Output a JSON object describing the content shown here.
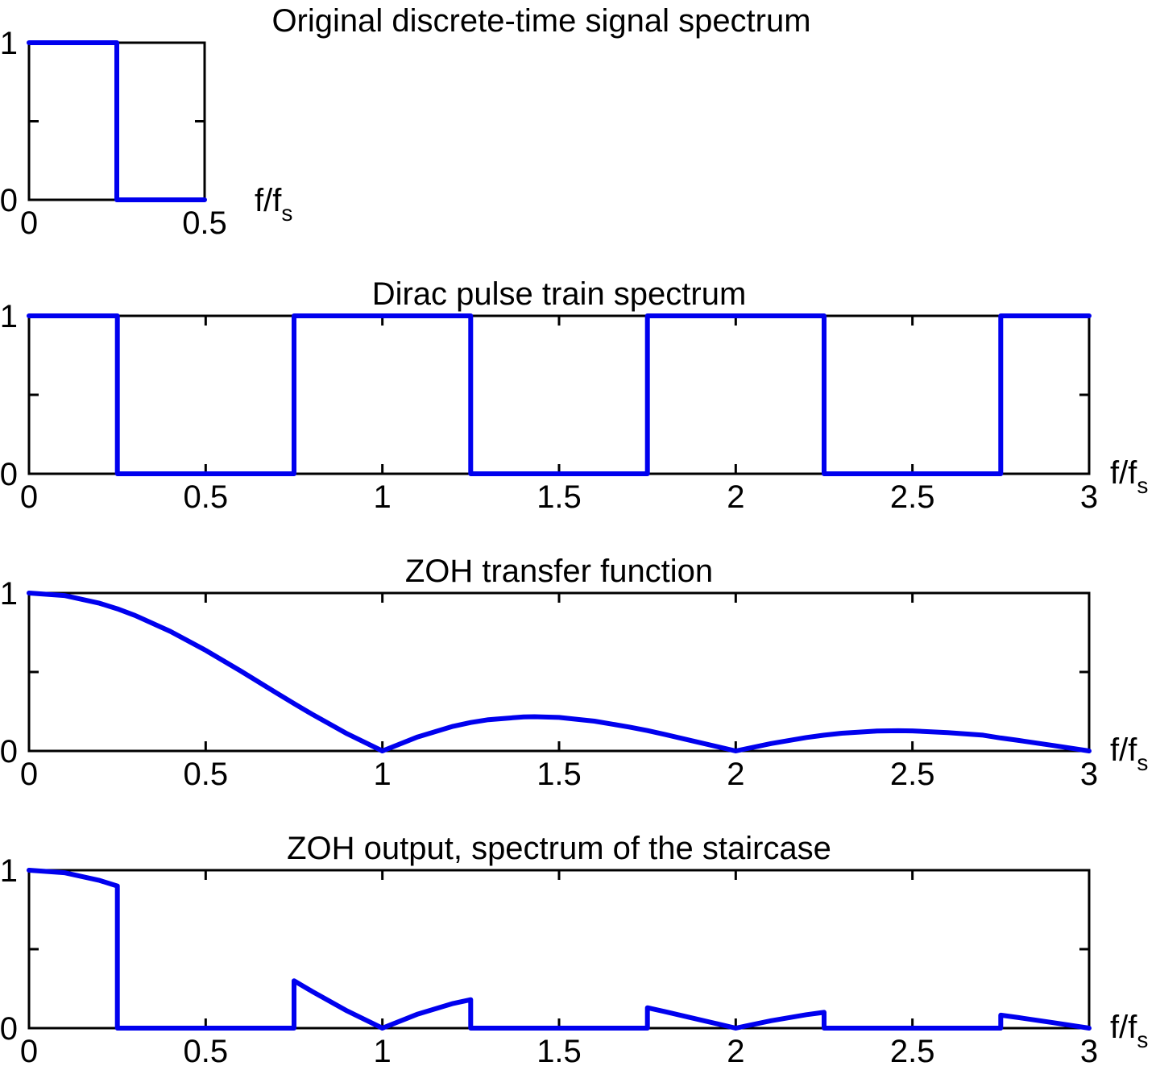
{
  "chart_data": [
    {
      "type": "line",
      "title": "Original discrete-time signal spectrum",
      "xlabel": "f/f",
      "xlabel_sub": "s",
      "xlim": [
        0,
        0.5
      ],
      "ylim": [
        0,
        1
      ],
      "xticks": [
        0,
        0.5
      ],
      "xtick_labels": [
        "0",
        "0.5"
      ],
      "yticks": [
        0,
        0.5,
        1
      ],
      "ytick_labels": [
        "0",
        "",
        "1"
      ],
      "series": [
        {
          "x": [
            0,
            0.25,
            0.25,
            0.5
          ],
          "y": [
            1,
            1,
            0,
            0
          ],
          "color": "#0000ee"
        }
      ]
    },
    {
      "type": "line",
      "title": "Dirac pulse train spectrum",
      "xlabel": "f/f",
      "xlabel_sub": "s",
      "xlim": [
        0,
        3
      ],
      "ylim": [
        0,
        1
      ],
      "xticks": [
        0,
        0.5,
        1,
        1.5,
        2,
        2.5,
        3
      ],
      "xtick_labels": [
        "0",
        "0.5",
        "1",
        "1.5",
        "2",
        "2.5",
        "3"
      ],
      "yticks": [
        0,
        0.5,
        1
      ],
      "ytick_labels": [
        "0",
        "",
        "1"
      ],
      "series": [
        {
          "x": [
            0,
            0.25,
            0.25,
            0.75,
            0.75,
            1.25,
            1.25,
            1.75,
            1.75,
            2.25,
            2.25,
            2.75,
            2.75,
            3
          ],
          "y": [
            1,
            1,
            0,
            0,
            1,
            1,
            0,
            0,
            1,
            1,
            0,
            0,
            1,
            1
          ],
          "color": "#0000ee"
        }
      ]
    },
    {
      "type": "line",
      "title": "ZOH transfer function",
      "xlabel": "f/f",
      "xlabel_sub": "s",
      "xlim": [
        0,
        3
      ],
      "ylim": [
        0,
        1
      ],
      "xticks": [
        0,
        0.5,
        1,
        1.5,
        2,
        2.5,
        3
      ],
      "xtick_labels": [
        "0",
        "0.5",
        "1",
        "1.5",
        "2",
        "2.5",
        "3"
      ],
      "yticks": [
        0,
        0.5,
        1
      ],
      "ytick_labels": [
        "0",
        "",
        "1"
      ],
      "series": [
        {
          "x": [
            0,
            0.1,
            0.2,
            0.25,
            0.3,
            0.4,
            0.5,
            0.6,
            0.7,
            0.75,
            0.8,
            0.9,
            1.0,
            1.1,
            1.2,
            1.25,
            1.3,
            1.4,
            1.43,
            1.5,
            1.6,
            1.7,
            1.75,
            1.8,
            1.9,
            2.0,
            2.1,
            2.2,
            2.25,
            2.3,
            2.4,
            2.46,
            2.5,
            2.6,
            2.7,
            2.75,
            2.8,
            2.9,
            3.0
          ],
          "y": [
            1.0,
            0.984,
            0.935,
            0.9,
            0.858,
            0.757,
            0.637,
            0.505,
            0.368,
            0.3,
            0.234,
            0.109,
            0.0,
            0.089,
            0.156,
            0.18,
            0.198,
            0.216,
            0.217,
            0.212,
            0.189,
            0.151,
            0.129,
            0.104,
            0.052,
            0.0,
            0.047,
            0.085,
            0.1,
            0.112,
            0.126,
            0.128,
            0.127,
            0.116,
            0.1,
            0.082,
            0.067,
            0.034,
            0.0
          ],
          "color": "#0000ee"
        }
      ]
    },
    {
      "type": "line",
      "title": "ZOH output, spectrum of the staircase",
      "xlabel": "f/f",
      "xlabel_sub": "s",
      "xlim": [
        0,
        3
      ],
      "ylim": [
        0,
        1
      ],
      "xticks": [
        0,
        0.5,
        1,
        1.5,
        2,
        2.5,
        3
      ],
      "xtick_labels": [
        "0",
        "0.5",
        "1",
        "1.5",
        "2",
        "2.5",
        "3"
      ],
      "yticks": [
        0,
        0.5,
        1
      ],
      "ytick_labels": [
        "0",
        "",
        "1"
      ],
      "series": [
        {
          "x": [
            0,
            0.1,
            0.2,
            0.25,
            0.25,
            0.75,
            0.75,
            0.8,
            0.9,
            1.0,
            1.1,
            1.2,
            1.25,
            1.25,
            1.75,
            1.75,
            1.8,
            1.9,
            2.0,
            2.1,
            2.2,
            2.25,
            2.25,
            2.75,
            2.75,
            2.8,
            2.9,
            3.0
          ],
          "y": [
            1.0,
            0.984,
            0.935,
            0.9,
            0.0,
            0.0,
            0.3,
            0.234,
            0.109,
            0.0,
            0.089,
            0.156,
            0.18,
            0.0,
            0.0,
            0.129,
            0.104,
            0.052,
            0.0,
            0.047,
            0.085,
            0.1,
            0.0,
            0.0,
            0.082,
            0.067,
            0.034,
            0.0
          ],
          "color": "#0000ee"
        }
      ]
    }
  ]
}
